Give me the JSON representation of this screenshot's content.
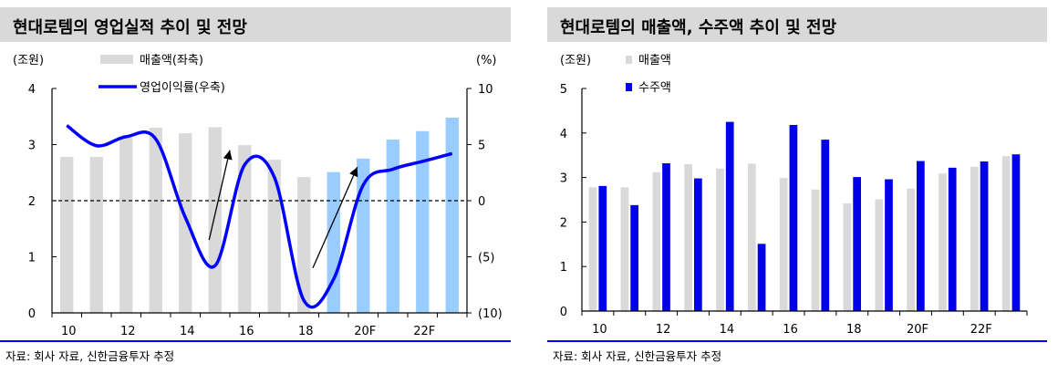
{
  "left": {
    "title": "현대로템의 영업실적 추이 및 전망",
    "source": "자료: 회사 자료, 신한금융투자 추정"
  },
  "right": {
    "title": "현대로템의 매출액, 수주액 추이 및 전망",
    "source": "자료: 회사 자료, 신한금융투자 추정"
  },
  "colors": {
    "bar_grey": "#d9d9d9",
    "bar_forecast": "#99ccff",
    "line_blue": "#0000ff",
    "order_blue": "#0000e6",
    "axis": "#000000"
  },
  "chart_data": [
    {
      "type": "bar+line",
      "title": "현대로템의 영업실적 추이 및 전망",
      "categories": [
        "10",
        "11",
        "12",
        "13",
        "14",
        "15",
        "16",
        "17",
        "18",
        "19",
        "20F",
        "21F",
        "22F",
        "23F"
      ],
      "x_tick_labels": [
        "10",
        "12",
        "14",
        "16",
        "18",
        "20F",
        "22F"
      ],
      "forecast_start_index": 9,
      "y_left_unit": "(조원)",
      "y_right_unit": "(%)",
      "ylim_left": [
        0,
        4
      ],
      "ylim_right": [
        -10,
        10
      ],
      "y_left_ticks": [
        "0",
        "1",
        "2",
        "3",
        "4"
      ],
      "y_right_ticks": [
        "(10)",
        "(5)",
        "0",
        "5",
        "10"
      ],
      "series": [
        {
          "name": "매출액(좌축)",
          "axis": "left",
          "kind": "bar",
          "values": [
            2.78,
            2.78,
            3.12,
            3.3,
            3.2,
            3.31,
            2.99,
            2.73,
            2.42,
            2.51,
            2.75,
            3.09,
            3.24,
            3.48
          ]
        },
        {
          "name": "영업이익률(우축)",
          "axis": "right",
          "kind": "line",
          "values": [
            6.7,
            4.9,
            5.7,
            5.5,
            -1.5,
            -5.8,
            3.2,
            2.1,
            -8.9,
            -7.0,
            1.4,
            2.8,
            3.5,
            4.2
          ]
        }
      ],
      "reference_line": {
        "axis": "left",
        "value": 2.0,
        "style": "dashed"
      },
      "annotations": [
        {
          "type": "arrow",
          "from_index": 14.8,
          "from_right_value": -3.5,
          "to_index": 15.5,
          "to_right_value": 4.5
        },
        {
          "type": "arrow",
          "from_index": 18.3,
          "from_right_value": -6.0,
          "to_index": 19.8,
          "to_right_value": 3.0
        }
      ]
    },
    {
      "type": "bar",
      "title": "현대로템의 매출액, 수주액 추이 및 전망",
      "categories": [
        "10",
        "11",
        "12",
        "13",
        "14",
        "15",
        "16",
        "17",
        "18",
        "19",
        "20F",
        "21F",
        "22F",
        "23F"
      ],
      "x_tick_labels": [
        "10",
        "12",
        "14",
        "16",
        "18",
        "20F",
        "22F"
      ],
      "y_unit": "(조원)",
      "ylim": [
        0,
        5
      ],
      "y_ticks": [
        "0",
        "1",
        "2",
        "3",
        "4",
        "5"
      ],
      "series": [
        {
          "name": "매출액",
          "values": [
            2.78,
            2.78,
            3.12,
            3.3,
            3.2,
            3.31,
            2.99,
            2.73,
            2.42,
            2.51,
            2.75,
            3.09,
            3.24,
            3.48
          ]
        },
        {
          "name": "수주액",
          "values": [
            2.81,
            2.38,
            3.32,
            2.98,
            4.25,
            1.51,
            4.18,
            3.85,
            3.01,
            2.96,
            3.37,
            3.22,
            3.36,
            3.52
          ]
        }
      ]
    }
  ]
}
